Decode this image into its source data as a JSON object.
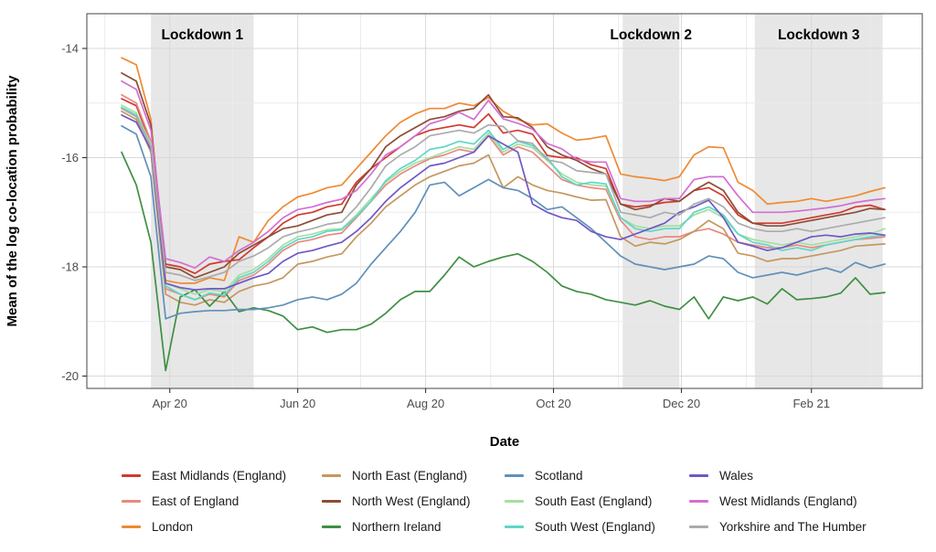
{
  "figure_title": "",
  "chart_data": {
    "type": "line",
    "title": "",
    "xlabel": "Date",
    "ylabel": "Mean of the log co-location probability",
    "grid": true,
    "legend_position": "bottom",
    "ylim": [
      -20.25,
      -13.35
    ],
    "y_ticks": [
      -14,
      -16,
      -18,
      -20
    ],
    "y_minor_ticks": [
      -15,
      -17,
      -19
    ],
    "x_tick_labels": [
      "Apr 20",
      "Jun 20",
      "Aug 20",
      "Oct 20",
      "Dec 20",
      "Feb 21"
    ],
    "x_tick_dates": [
      "2020-04-01",
      "2020-06-01",
      "2020-08-01",
      "2020-10-01",
      "2020-12-01",
      "2021-02-01"
    ],
    "x_minor_grid_dates": [
      "2020-03-01",
      "2020-05-01",
      "2020-07-01",
      "2020-09-01",
      "2020-11-01",
      "2021-01-01",
      "2021-03-01"
    ],
    "x_dates": [
      "2020-03-09",
      "2020-03-16",
      "2020-03-23",
      "2020-03-30",
      "2020-04-06",
      "2020-04-13",
      "2020-04-20",
      "2020-04-27",
      "2020-05-04",
      "2020-05-11",
      "2020-05-18",
      "2020-05-25",
      "2020-06-01",
      "2020-06-08",
      "2020-06-15",
      "2020-06-22",
      "2020-06-29",
      "2020-07-06",
      "2020-07-13",
      "2020-07-20",
      "2020-07-27",
      "2020-08-03",
      "2020-08-10",
      "2020-08-17",
      "2020-08-24",
      "2020-08-31",
      "2020-09-07",
      "2020-09-14",
      "2020-09-21",
      "2020-09-28",
      "2020-10-05",
      "2020-10-12",
      "2020-10-19",
      "2020-10-26",
      "2020-11-02",
      "2020-11-09",
      "2020-11-16",
      "2020-11-23",
      "2020-11-30",
      "2020-12-07",
      "2020-12-14",
      "2020-12-21",
      "2020-12-28",
      "2021-01-04",
      "2021-01-11",
      "2021-01-18",
      "2021-01-25",
      "2021-02-01",
      "2021-02-08",
      "2021-02-15",
      "2021-02-22",
      "2021-03-01",
      "2021-03-08"
    ],
    "annotations": [
      {
        "label": "Lockdown 1",
        "start": "2020-03-23",
        "end": "2020-05-11"
      },
      {
        "label": "Lockdown 2",
        "start": "2020-11-03",
        "end": "2020-11-30"
      },
      {
        "label": "Lockdown 3",
        "start": "2021-01-05",
        "end": "2021-03-07"
      }
    ],
    "series": [
      {
        "name": "East Midlands (England)",
        "color": "#d03a30",
        "values": [
          -14.92,
          -15.05,
          -15.75,
          -17.95,
          -18.0,
          -18.12,
          -17.95,
          -17.9,
          -17.87,
          -17.65,
          -17.45,
          -17.2,
          -17.05,
          -17.0,
          -16.9,
          -16.85,
          -16.45,
          -16.2,
          -16.0,
          -15.8,
          -15.6,
          -15.5,
          -15.45,
          -15.4,
          -15.45,
          -15.2,
          -15.55,
          -15.5,
          -15.57,
          -15.96,
          -16.0,
          -16.0,
          -16.13,
          -16.2,
          -16.85,
          -16.9,
          -16.87,
          -16.82,
          -16.8,
          -16.6,
          -16.55,
          -16.7,
          -17.05,
          -17.2,
          -17.2,
          -17.2,
          -17.15,
          -17.1,
          -17.05,
          -17.0,
          -16.9,
          -16.87,
          -16.95
        ]
      },
      {
        "name": "East of England",
        "color": "#e8897f",
        "values": [
          -14.85,
          -15.0,
          -15.7,
          -18.4,
          -18.5,
          -18.6,
          -18.5,
          -18.55,
          -18.25,
          -18.15,
          -17.95,
          -17.7,
          -17.55,
          -17.5,
          -17.42,
          -17.38,
          -17.1,
          -16.8,
          -16.5,
          -16.3,
          -16.15,
          -16.02,
          -15.95,
          -15.85,
          -15.9,
          -15.6,
          -15.95,
          -15.8,
          -15.9,
          -16.15,
          -16.4,
          -16.5,
          -16.55,
          -16.58,
          -17.15,
          -17.45,
          -17.5,
          -17.45,
          -17.45,
          -17.35,
          -17.3,
          -17.4,
          -17.55,
          -17.6,
          -17.65,
          -17.65,
          -17.6,
          -17.65,
          -17.6,
          -17.55,
          -17.5,
          -17.48,
          -17.45
        ]
      },
      {
        "name": "London",
        "color": "#ef8a33",
        "values": [
          -14.17,
          -14.3,
          -15.3,
          -18.25,
          -18.3,
          -18.3,
          -18.2,
          -18.25,
          -17.45,
          -17.55,
          -17.15,
          -16.9,
          -16.72,
          -16.65,
          -16.55,
          -16.5,
          -16.2,
          -15.9,
          -15.6,
          -15.35,
          -15.2,
          -15.1,
          -15.1,
          -15.0,
          -15.05,
          -14.9,
          -15.15,
          -15.3,
          -15.4,
          -15.38,
          -15.55,
          -15.68,
          -15.65,
          -15.6,
          -16.3,
          -16.35,
          -16.38,
          -16.42,
          -16.35,
          -15.95,
          -15.8,
          -15.82,
          -16.45,
          -16.6,
          -16.85,
          -16.82,
          -16.8,
          -16.75,
          -16.8,
          -16.75,
          -16.7,
          -16.62,
          -16.55
        ]
      },
      {
        "name": "North East (England)",
        "color": "#c6975f",
        "values": [
          -15.15,
          -15.3,
          -15.9,
          -18.5,
          -18.65,
          -18.7,
          -18.6,
          -18.65,
          -18.45,
          -18.35,
          -18.3,
          -18.2,
          -17.95,
          -17.9,
          -17.82,
          -17.76,
          -17.45,
          -17.2,
          -16.9,
          -16.7,
          -16.5,
          -16.35,
          -16.25,
          -16.15,
          -16.1,
          -15.95,
          -16.55,
          -16.35,
          -16.5,
          -16.6,
          -16.65,
          -16.72,
          -16.78,
          -16.77,
          -17.45,
          -17.62,
          -17.55,
          -17.58,
          -17.5,
          -17.35,
          -17.15,
          -17.3,
          -17.75,
          -17.8,
          -17.9,
          -17.85,
          -17.85,
          -17.8,
          -17.75,
          -17.7,
          -17.62,
          -17.6,
          -17.58
        ]
      },
      {
        "name": "North West (England)",
        "color": "#8d4c35",
        "values": [
          -14.45,
          -14.6,
          -15.4,
          -18.0,
          -18.05,
          -18.2,
          -18.1,
          -18.0,
          -17.75,
          -17.6,
          -17.45,
          -17.3,
          -17.25,
          -17.15,
          -17.05,
          -17.0,
          -16.5,
          -16.2,
          -15.8,
          -15.6,
          -15.45,
          -15.3,
          -15.25,
          -15.15,
          -15.1,
          -14.85,
          -15.25,
          -15.27,
          -15.45,
          -15.8,
          -15.95,
          -16.05,
          -16.2,
          -16.3,
          -16.85,
          -16.95,
          -16.9,
          -16.75,
          -16.8,
          -16.6,
          -16.45,
          -16.6,
          -17.0,
          -17.2,
          -17.25,
          -17.25,
          -17.2,
          -17.15,
          -17.1,
          -17.05,
          -17.0,
          -16.93,
          -16.95
        ]
      },
      {
        "name": "Northern Ireland",
        "color": "#3f8f42",
        "values": [
          -15.9,
          -16.5,
          -17.55,
          -19.9,
          -18.55,
          -18.42,
          -18.72,
          -18.45,
          -18.82,
          -18.75,
          -18.8,
          -18.9,
          -19.15,
          -19.1,
          -19.2,
          -19.15,
          -19.15,
          -19.05,
          -18.85,
          -18.6,
          -18.45,
          -18.45,
          -18.15,
          -17.82,
          -18.0,
          -17.9,
          -17.82,
          -17.76,
          -17.9,
          -18.1,
          -18.35,
          -18.45,
          -18.5,
          -18.6,
          -18.65,
          -18.7,
          -18.62,
          -18.72,
          -18.78,
          -18.55,
          -18.95,
          -18.55,
          -18.62,
          -18.55,
          -18.68,
          -18.4,
          -18.6,
          -18.58,
          -18.55,
          -18.48,
          -18.2,
          -18.5,
          -18.47
        ]
      },
      {
        "name": "Scotland",
        "color": "#6190bb",
        "values": [
          -15.42,
          -15.57,
          -16.35,
          -18.95,
          -18.85,
          -18.82,
          -18.8,
          -18.8,
          -18.78,
          -18.78,
          -18.75,
          -18.7,
          -18.6,
          -18.55,
          -18.6,
          -18.5,
          -18.3,
          -17.95,
          -17.65,
          -17.35,
          -17.0,
          -16.5,
          -16.45,
          -16.7,
          -16.55,
          -16.4,
          -16.55,
          -16.6,
          -16.75,
          -16.95,
          -16.9,
          -17.1,
          -17.3,
          -17.55,
          -17.8,
          -17.95,
          -18.0,
          -18.05,
          -18.0,
          -17.95,
          -17.8,
          -17.85,
          -18.1,
          -18.2,
          -18.15,
          -18.1,
          -18.15,
          -18.08,
          -18.02,
          -18.1,
          -17.92,
          -18.02,
          -17.95
        ]
      },
      {
        "name": "South East (England)",
        "color": "#a5dea1",
        "values": [
          -15.04,
          -15.18,
          -15.75,
          -18.3,
          -18.4,
          -18.5,
          -18.42,
          -18.45,
          -18.15,
          -18.05,
          -17.85,
          -17.6,
          -17.45,
          -17.4,
          -17.32,
          -17.3,
          -17.05,
          -16.75,
          -16.45,
          -16.25,
          -16.1,
          -16.0,
          -15.9,
          -15.8,
          -15.85,
          -15.55,
          -15.9,
          -15.75,
          -15.82,
          -16.05,
          -16.3,
          -16.45,
          -16.5,
          -16.52,
          -17.1,
          -17.25,
          -17.3,
          -17.25,
          -17.25,
          -17.05,
          -16.95,
          -17.1,
          -17.4,
          -17.5,
          -17.55,
          -17.6,
          -17.55,
          -17.6,
          -17.55,
          -17.5,
          -17.45,
          -17.4,
          -17.3
        ]
      },
      {
        "name": "South West (England)",
        "color": "#5fd6c7",
        "values": [
          -15.08,
          -15.22,
          -15.8,
          -18.35,
          -18.5,
          -18.6,
          -18.48,
          -18.52,
          -18.2,
          -18.1,
          -17.9,
          -17.65,
          -17.5,
          -17.45,
          -17.35,
          -17.32,
          -17.08,
          -16.8,
          -16.42,
          -16.2,
          -16.05,
          -15.85,
          -15.8,
          -15.7,
          -15.75,
          -15.5,
          -15.85,
          -15.7,
          -15.78,
          -16.0,
          -16.35,
          -16.5,
          -16.45,
          -16.48,
          -17.1,
          -17.3,
          -17.35,
          -17.3,
          -17.3,
          -17.0,
          -16.9,
          -17.05,
          -17.4,
          -17.55,
          -17.6,
          -17.7,
          -17.65,
          -17.7,
          -17.6,
          -17.55,
          -17.5,
          -17.45,
          -17.42
        ]
      },
      {
        "name": "Wales",
        "color": "#6f58c5",
        "values": [
          -15.22,
          -15.35,
          -15.85,
          -18.3,
          -18.38,
          -18.42,
          -18.4,
          -18.4,
          -18.3,
          -18.2,
          -18.12,
          -17.9,
          -17.75,
          -17.7,
          -17.62,
          -17.55,
          -17.35,
          -17.1,
          -16.8,
          -16.55,
          -16.35,
          -16.15,
          -16.1,
          -16.0,
          -15.9,
          -15.6,
          -15.75,
          -15.9,
          -16.85,
          -17.0,
          -17.1,
          -17.15,
          -17.35,
          -17.45,
          -17.5,
          -17.4,
          -17.3,
          -17.2,
          -17.0,
          -16.9,
          -16.78,
          -17.1,
          -17.55,
          -17.62,
          -17.7,
          -17.65,
          -17.55,
          -17.45,
          -17.42,
          -17.45,
          -17.4,
          -17.38,
          -17.42
        ]
      },
      {
        "name": "West Midlands (England)",
        "color": "#d36fd2",
        "values": [
          -14.6,
          -14.75,
          -15.5,
          -17.85,
          -17.92,
          -18.02,
          -17.82,
          -17.9,
          -17.7,
          -17.55,
          -17.35,
          -17.1,
          -16.95,
          -16.9,
          -16.82,
          -16.76,
          -16.6,
          -16.3,
          -15.95,
          -15.8,
          -15.6,
          -15.38,
          -15.3,
          -15.17,
          -15.3,
          -14.95,
          -15.29,
          -15.37,
          -15.48,
          -15.74,
          -15.84,
          -16.03,
          -16.08,
          -16.08,
          -16.75,
          -16.8,
          -16.8,
          -16.75,
          -16.75,
          -16.4,
          -16.35,
          -16.35,
          -16.7,
          -17.0,
          -17.0,
          -17.0,
          -16.98,
          -16.95,
          -16.92,
          -16.88,
          -16.82,
          -16.78,
          -16.75
        ]
      },
      {
        "name": "Yorkshire and The Humber",
        "color": "#ababab",
        "values": [
          -15.1,
          -15.25,
          -15.8,
          -18.1,
          -18.15,
          -18.25,
          -18.18,
          -18.1,
          -17.9,
          -17.8,
          -17.65,
          -17.45,
          -17.36,
          -17.3,
          -17.22,
          -17.18,
          -16.9,
          -16.55,
          -16.15,
          -15.95,
          -15.8,
          -15.6,
          -15.55,
          -15.5,
          -15.55,
          -15.4,
          -15.43,
          -15.69,
          -15.74,
          -16.04,
          -16.09,
          -16.24,
          -16.27,
          -16.3,
          -17.0,
          -17.05,
          -17.1,
          -17.0,
          -17.05,
          -16.85,
          -16.75,
          -16.9,
          -17.2,
          -17.3,
          -17.35,
          -17.35,
          -17.3,
          -17.35,
          -17.3,
          -17.25,
          -17.2,
          -17.15,
          -17.1
        ]
      }
    ]
  },
  "colors": {
    "band": "#e7e7e7",
    "grid_major": "#d9d9d9",
    "grid_minor": "#ececec",
    "panel_border": "#555555",
    "tick": "#333333",
    "tick_label": "#4d4d4d"
  }
}
